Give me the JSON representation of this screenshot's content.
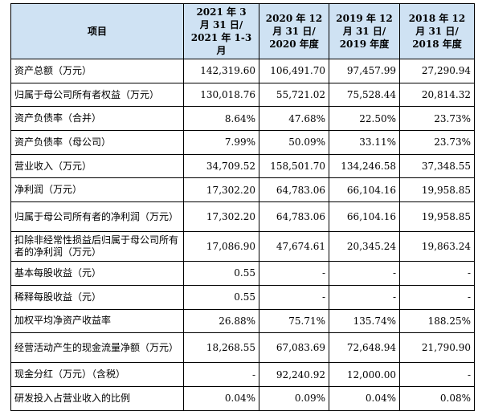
{
  "table": {
    "headers": [
      "项目",
      "2021 年 3\n月 31 日/\n2021 年 1-3 月",
      "2020 年 12\n月 31 日/\n2020 年度",
      "2019 年 12\n月 31 日/\n2019 年度",
      "2018 年 12\n月 31 日/\n2018 年度"
    ],
    "rows": [
      {
        "label": "资产总额（万元）",
        "values": [
          "142,319.60",
          "106,491.70",
          "97,457.99",
          "27,290.94"
        ]
      },
      {
        "label": "归属于母公司所有者权益（万元）",
        "values": [
          "130,018.76",
          "55,721.02",
          "75,528.44",
          "20,814.32"
        ]
      },
      {
        "label": "资产负债率（合并）",
        "values": [
          "8.64%",
          "47.68%",
          "22.50%",
          "23.73%"
        ]
      },
      {
        "label": "资产负债率（母公司）",
        "values": [
          "7.99%",
          "50.09%",
          "33.11%",
          "23.73%"
        ]
      },
      {
        "label": "营业收入（万元）",
        "values": [
          "34,709.52",
          "158,501.70",
          "134,246.58",
          "37,348.55"
        ]
      },
      {
        "label": "净利润（万元）",
        "values": [
          "17,302.20",
          "64,783.06",
          "66,104.16",
          "19,958.85"
        ]
      },
      {
        "label": "归属于母公司所有者的净利润（万元）",
        "values": [
          "17,302.20",
          "64,783.06",
          "66,104.16",
          "19,958.85"
        ]
      },
      {
        "label": "扣除非经常性损益后归属于母公司所有者的净利润（万元）",
        "values": [
          "17,086.90",
          "47,674.61",
          "20,345.24",
          "19,863.24"
        ]
      },
      {
        "label": "基本每股收益（元）",
        "values": [
          "0.55",
          "-",
          "-",
          "-"
        ]
      },
      {
        "label": "稀释每股收益（元）",
        "values": [
          "0.55",
          "-",
          "-",
          "-"
        ]
      },
      {
        "label": "加权平均净资产收益率",
        "values": [
          "26.88%",
          "75.71%",
          "135.74%",
          "188.25%"
        ]
      },
      {
        "label": "经营活动产生的现金流量净额（万元）",
        "values": [
          "18,268.55",
          "67,083.69",
          "72,648.94",
          "21,790.90"
        ]
      },
      {
        "label": "现金分红（万元）（含税）",
        "values": [
          "-",
          "92,240.92",
          "12,000.00",
          "-"
        ]
      },
      {
        "label": "研发投入占营业收入的比例",
        "values": [
          "0.04%",
          "0.09%",
          "0.04%",
          "0.08%"
        ]
      }
    ]
  }
}
